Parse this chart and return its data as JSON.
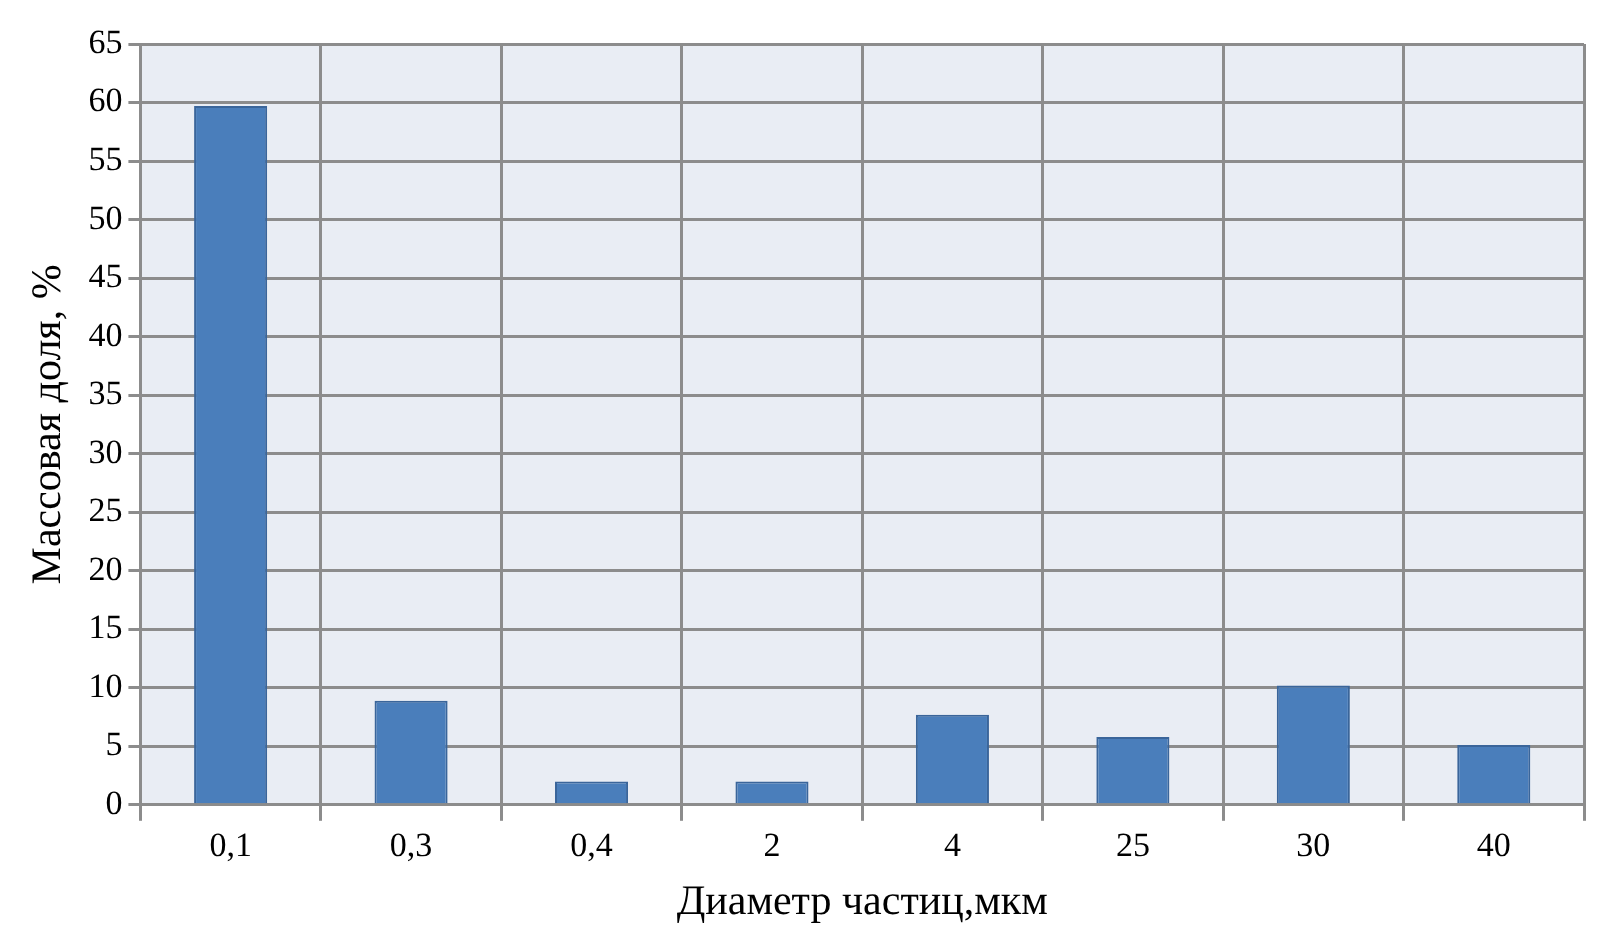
{
  "chart_data": {
    "type": "bar",
    "xlabel": "Диаметр частиц,мкм",
    "ylabel": "Массовая доля, %",
    "categories": [
      "0,1",
      "0,3",
      "0,4",
      "2",
      "4",
      "25",
      "30",
      "40"
    ],
    "values": [
      59.7,
      8.9,
      2,
      2,
      7.7,
      5.8,
      10.2,
      5.1
    ],
    "color": "#4a7ebb",
    "ylim": [
      0,
      65
    ],
    "yticks": [
      0,
      5,
      10,
      15,
      20,
      25,
      30,
      35,
      40,
      45,
      50,
      55,
      60,
      65
    ],
    "grid": true,
    "legend": false
  }
}
